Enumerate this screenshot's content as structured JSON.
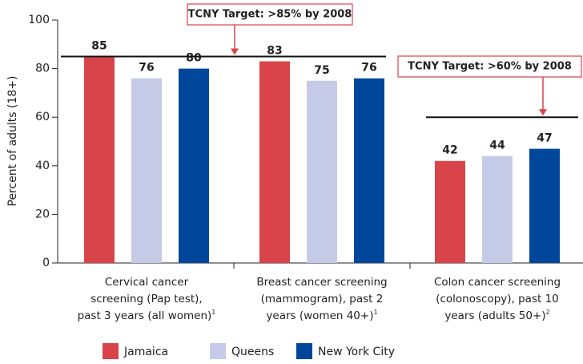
{
  "chart_data": {
    "type": "bar",
    "y_label": "Percent of adults (18+)",
    "categories": [
      [
        "Cervical cancer",
        "screening (Pap test),",
        "past 3 years (all women)"
      ],
      [
        "Breast cancer screening",
        "(mammogram), past 2",
        "years (women 40+)"
      ],
      [
        "Colon cancer screening",
        "(colonoscopy), past 10",
        "years (adults 50+)"
      ]
    ],
    "category_notes": [
      "1",
      "1",
      "2"
    ],
    "series": [
      {
        "name": "Jamaica",
        "color": "#d9434a",
        "values": [
          85,
          83,
          42
        ]
      },
      {
        "name": "Queens",
        "color": "#c5cbe6",
        "values": [
          76,
          75,
          44
        ]
      },
      {
        "name": "New York City",
        "color": "#00479b",
        "values": [
          80,
          76,
          47
        ]
      }
    ],
    "targets": [
      {
        "label": "TCNY Target: >85% by 2008",
        "value": 85
      },
      {
        "label": "TCNY Target: >60% by 2008",
        "value": 60
      }
    ],
    "ylim": [
      0,
      100
    ],
    "yticks": [
      0,
      20,
      40,
      60,
      80,
      100
    ]
  }
}
